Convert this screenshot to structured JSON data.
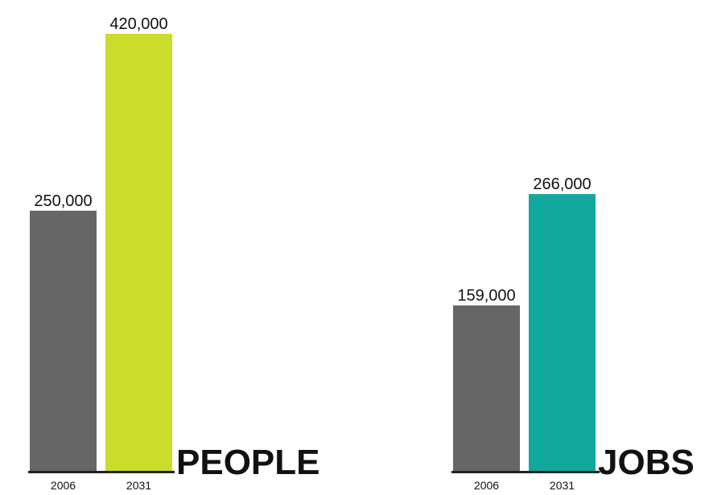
{
  "chart_data": [
    {
      "type": "bar",
      "title": "PEOPLE",
      "categories": [
        "2006",
        "2031"
      ],
      "values": [
        250000,
        420000
      ],
      "value_labels": [
        "250,000",
        "420,000"
      ],
      "colors": [
        "#666666",
        "#cbdc2a"
      ],
      "ylim": [
        0,
        420000
      ],
      "grid": false,
      "legend": "none"
    },
    {
      "type": "bar",
      "title": "JOBS",
      "categories": [
        "2006",
        "2031"
      ],
      "values": [
        159000,
        266000
      ],
      "value_labels": [
        "159,000",
        "266,000"
      ],
      "colors": [
        "#666666",
        "#13a89e"
      ],
      "ylim": [
        0,
        420000
      ],
      "grid": false,
      "legend": "none"
    }
  ],
  "axis_color": "#222222"
}
